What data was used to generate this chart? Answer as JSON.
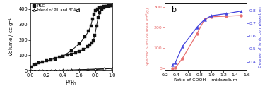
{
  "panel_a": {
    "pilc_adsorption_x": [
      0.01,
      0.04,
      0.07,
      0.1,
      0.15,
      0.2,
      0.25,
      0.3,
      0.35,
      0.4,
      0.45,
      0.5,
      0.55,
      0.6,
      0.65,
      0.7,
      0.73,
      0.75,
      0.77,
      0.79,
      0.81,
      0.83,
      0.85,
      0.87,
      0.89,
      0.91,
      0.93,
      0.95,
      0.97,
      0.99
    ],
    "pilc_adsorption_y": [
      26,
      38,
      44,
      50,
      58,
      65,
      72,
      79,
      86,
      93,
      100,
      108,
      116,
      126,
      138,
      155,
      168,
      178,
      195,
      230,
      290,
      345,
      378,
      398,
      408,
      413,
      416,
      419,
      421,
      423
    ],
    "pilc_desorption_x": [
      0.99,
      0.96,
      0.93,
      0.9,
      0.87,
      0.84,
      0.82,
      0.8,
      0.78,
      0.76,
      0.74,
      0.71,
      0.67,
      0.6,
      0.5,
      0.4,
      0.3
    ],
    "pilc_desorption_y": [
      423,
      421,
      419,
      416,
      413,
      408,
      400,
      388,
      368,
      335,
      290,
      255,
      220,
      175,
      130,
      95,
      75
    ],
    "blend_adsorption_x": [
      0.01,
      0.05,
      0.1,
      0.15,
      0.2,
      0.25,
      0.3,
      0.35,
      0.4,
      0.45,
      0.5,
      0.6,
      0.7,
      0.8,
      0.9,
      1.0
    ],
    "blend_adsorption_y": [
      2,
      2,
      2,
      2,
      2,
      2,
      2,
      3,
      3,
      3,
      4,
      5,
      6,
      8,
      11,
      15
    ],
    "blend_desorption_x": [
      1.0,
      0.9,
      0.8,
      0.7,
      0.6,
      0.5,
      0.4,
      0.3
    ],
    "blend_desorption_y": [
      15,
      13,
      11,
      9,
      7,
      5,
      4,
      3
    ],
    "xlabel": "P/P$_0$",
    "ylabel": "Volume / cc g$^{-1}$",
    "label_a": "a",
    "legend_pilc": "PILC",
    "legend_blend": "blend of PIL and BCA",
    "xlim": [
      0.0,
      1.0
    ],
    "ylim": [
      0,
      440
    ],
    "yticks": [
      0,
      100,
      200,
      300,
      400
    ],
    "xticks": [
      0.0,
      0.2,
      0.4,
      0.6,
      0.8,
      1.0
    ]
  },
  "panel_b": {
    "red_x": [
      0.33,
      0.38,
      0.5,
      0.75,
      0.88,
      1.0,
      1.25,
      1.5
    ],
    "red_y": [
      2,
      5,
      50,
      170,
      240,
      252,
      255,
      258
    ],
    "blue_x": [
      0.33,
      0.38,
      0.5,
      0.75,
      0.88,
      1.0,
      1.25,
      1.5
    ],
    "blue_y": [
      0.375,
      0.395,
      0.52,
      0.67,
      0.73,
      0.76,
      0.775,
      0.795
    ],
    "red_color": "#e87070",
    "blue_color": "#4444dd",
    "xlabel": "Ratio of COOH : Imidazolium",
    "ylabel_left": "Specific Surface area (m$^2$/g)",
    "ylabel_right": "Degree of ionic complexation",
    "label_b": "b",
    "xlim": [
      0.2,
      1.6
    ],
    "ylim_left": [
      -10,
      320
    ],
    "ylim_right": [
      0.33,
      0.86
    ],
    "yticks_left": [
      0,
      100,
      200,
      300
    ],
    "yticks_right": [
      0.4,
      0.5,
      0.6,
      0.7,
      0.8
    ],
    "xticks": [
      0.2,
      0.4,
      0.6,
      0.8,
      1.0,
      1.2,
      1.4,
      1.6
    ]
  }
}
